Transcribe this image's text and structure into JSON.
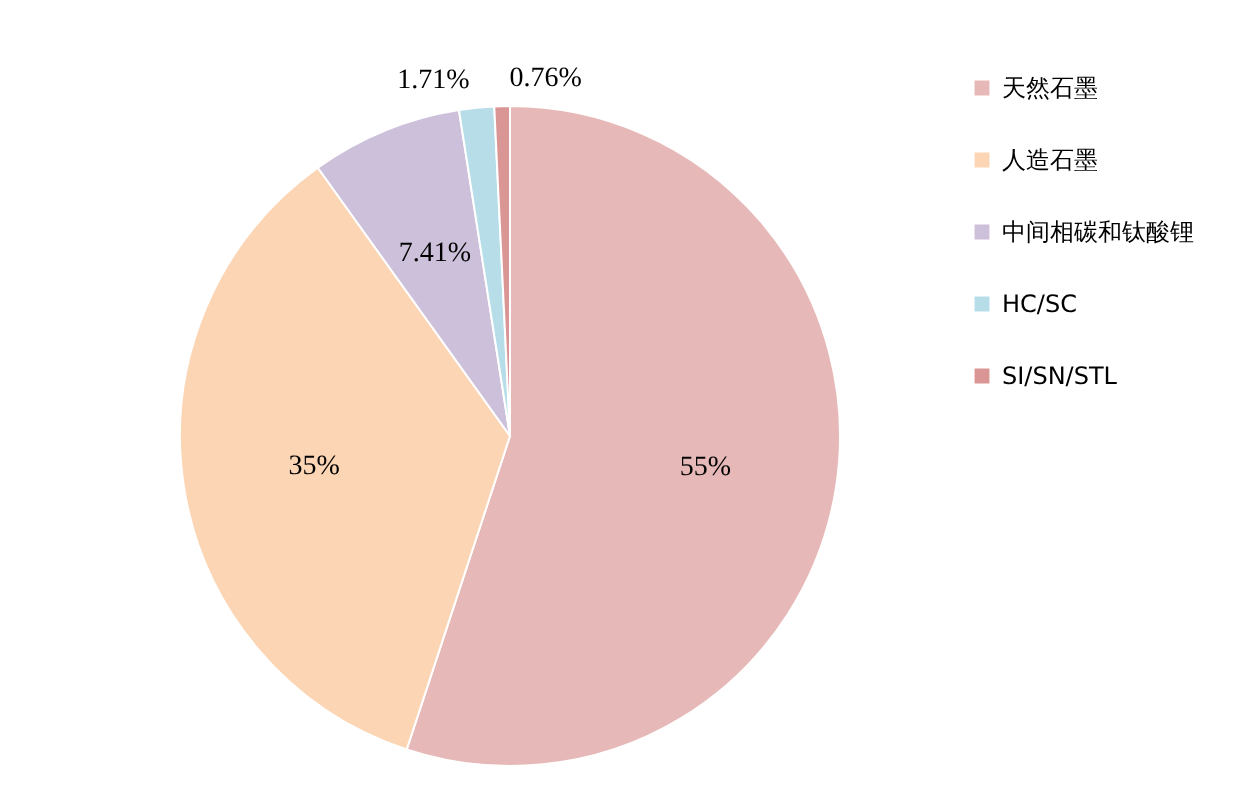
{
  "chart_data": {
    "type": "pie",
    "categories": [
      "天然石墨",
      "人造石墨",
      "中间相碳和钛酸锂",
      "HC/SC",
      "SI/SN/STL"
    ],
    "values": [
      55,
      35,
      7.41,
      1.71,
      0.76
    ],
    "colors": [
      "#e6b8b7",
      "#fcd5b4",
      "#ccc0da",
      "#b7dee8",
      "#da9694"
    ],
    "value_labels": [
      "55%",
      "35%",
      "7.41%",
      "1.71%",
      "0.76%"
    ],
    "legend": "right"
  }
}
